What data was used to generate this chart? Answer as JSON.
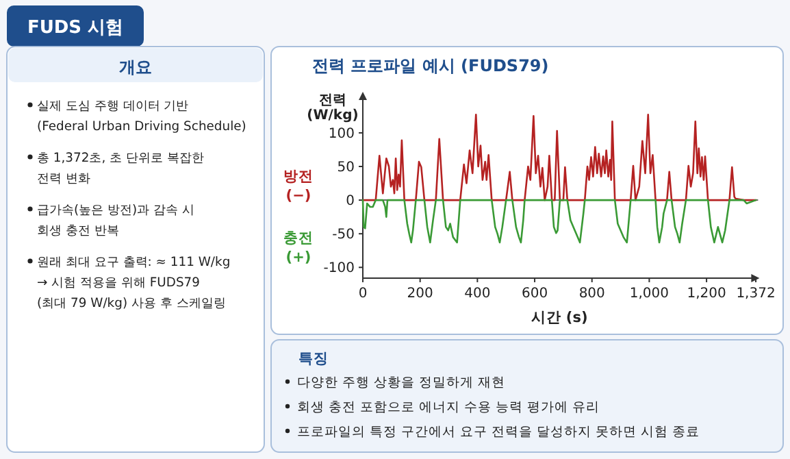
{
  "chart_data": [
    {
      "type": "other",
      "title": "FUDS 시험",
      "subtitle": "개요",
      "annotations": [
        "실제 도심 주행 데이터 기반\n(Federal Urban Driving Schedule)",
        "총 1,372초, 초 단위로 복잡한\n전력 변화",
        "급가속(높은 방전)과 감속 시\n회생 충전 반복",
        "원래 최대 요구 출력: ≈ 111 W/kg\n→ 시험 적용을 위해 FUDS79\n(최대 79 W/kg) 사용 후 스케일링"
      ]
    },
    {
      "type": "line",
      "title": "전력 프로파일 예시 (FUDS79)",
      "xlabel": "시간 (s)",
      "ylabel": "전력\n(W/kg)",
      "xlim": [
        0,
        1380
      ],
      "ylim": [
        -116,
        159
      ],
      "xticks": [
        0,
        200,
        400,
        600,
        800,
        {
          "value": 1000,
          "label": "1,000"
        },
        {
          "value": 1200,
          "label": "1,200"
        },
        {
          "value": 1372,
          "label": "1,372"
        }
      ],
      "yticks": [
        -100,
        -50,
        0,
        50,
        100
      ],
      "ref_lines": [
        {
          "axis": "y",
          "value": 0,
          "color": "#666666"
        }
      ],
      "legend": "left",
      "marker": "none",
      "line_style": "solid",
      "series": [
        {
          "name": "방전\n(−)",
          "color": "#b52222",
          "x": [
            0,
            45,
            58,
            70,
            82,
            91,
            98,
            105,
            110,
            115,
            120,
            125,
            130,
            136,
            145,
            185,
            196,
            204,
            215,
            255,
            267,
            280,
            340,
            353,
            362,
            373,
            383,
            395,
            403,
            411,
            418,
            427,
            432,
            439,
            450,
            500,
            513,
            522,
            565,
            577,
            585,
            596,
            604,
            612,
            620,
            627,
            635,
            645,
            651,
            660,
            670,
            678,
            688,
            700,
            706,
            714,
            775,
            784,
            790,
            797,
            804,
            811,
            818,
            824,
            832,
            839,
            845,
            850,
            857,
            863,
            867,
            871,
            880,
            935,
            944,
            952,
            965,
            976,
            986,
            996,
            1004,
            1012,
            1022,
            1062,
            1070,
            1078,
            1128,
            1137,
            1145,
            1153,
            1161,
            1168,
            1173,
            1179,
            1184,
            1190,
            1195,
            1205,
            1280,
            1289,
            1297,
            1302,
            1330,
            1372
          ],
          "values": [
            0,
            0,
            66,
            10,
            62,
            50,
            20,
            30,
            10,
            62,
            15,
            38,
            20,
            89,
            0,
            0,
            57,
            49,
            0,
            0,
            91,
            0,
            0,
            53,
            25,
            74,
            40,
            127,
            50,
            81,
            30,
            57,
            30,
            67,
            0,
            0,
            42,
            0,
            0,
            50,
            30,
            125,
            40,
            66,
            20,
            48,
            0,
            20,
            66,
            0,
            0,
            103,
            0,
            0,
            49,
            0,
            0,
            50,
            30,
            64,
            35,
            79,
            40,
            69,
            35,
            65,
            40,
            74,
            35,
            60,
            30,
            117,
            0,
            0,
            51,
            0,
            20,
            88,
            40,
            127,
            40,
            67,
            0,
            0,
            42,
            0,
            0,
            51,
            20,
            40,
            117,
            40,
            77,
            35,
            64,
            30,
            65,
            0,
            0,
            49,
            5,
            2,
            0,
            0
          ]
        },
        {
          "name": "충전\n(+)",
          "color": "#3a9a35",
          "x": [
            0,
            3,
            8,
            15,
            25,
            35,
            45,
            70,
            78,
            82,
            86,
            145,
            155,
            162,
            169,
            175,
            185,
            215,
            225,
            235,
            245,
            255,
            280,
            290,
            298,
            305,
            315,
            329,
            340,
            450,
            462,
            470,
            478,
            487,
            500,
            522,
            535,
            545,
            552,
            560,
            565,
            660,
            667,
            675,
            680,
            688,
            714,
            725,
            740,
            750,
            758,
            770,
            775,
            880,
            890,
            900,
            910,
            922,
            935,
            1022,
            1028,
            1035,
            1045,
            1050,
            1062,
            1078,
            1090,
            1098,
            1106,
            1115,
            1128,
            1205,
            1215,
            1227,
            1240,
            1255,
            1265,
            1280,
            1330,
            1340,
            1372
          ],
          "values": [
            0,
            -40,
            -42,
            -5,
            -10,
            -10,
            0,
            0,
            -10,
            -25,
            0,
            0,
            -35,
            -50,
            -63,
            -45,
            0,
            0,
            -40,
            -63,
            -30,
            0,
            0,
            -40,
            -45,
            -35,
            -55,
            -63,
            0,
            0,
            -40,
            -50,
            -63,
            -40,
            0,
            0,
            -40,
            -55,
            -63,
            -30,
            0,
            0,
            -40,
            -49,
            -45,
            0,
            0,
            -30,
            -45,
            -55,
            -63,
            -20,
            0,
            0,
            -35,
            -45,
            -55,
            -63,
            0,
            0,
            -40,
            -63,
            -40,
            -20,
            0,
            0,
            -40,
            -50,
            -63,
            -35,
            0,
            0,
            -40,
            -63,
            -40,
            -63,
            -45,
            0,
            0,
            -5,
            0
          ]
        }
      ]
    },
    {
      "type": "other",
      "title": "특징",
      "annotations": [
        "다양한 주행 상황을 정밀하게 재현",
        "회생 충전 포함으로 에너지 수용 능력 평가에 유리",
        "프로파일의 특정 구간에서 요구 전력을 달성하지 못하면 시험 종료"
      ]
    }
  ]
}
